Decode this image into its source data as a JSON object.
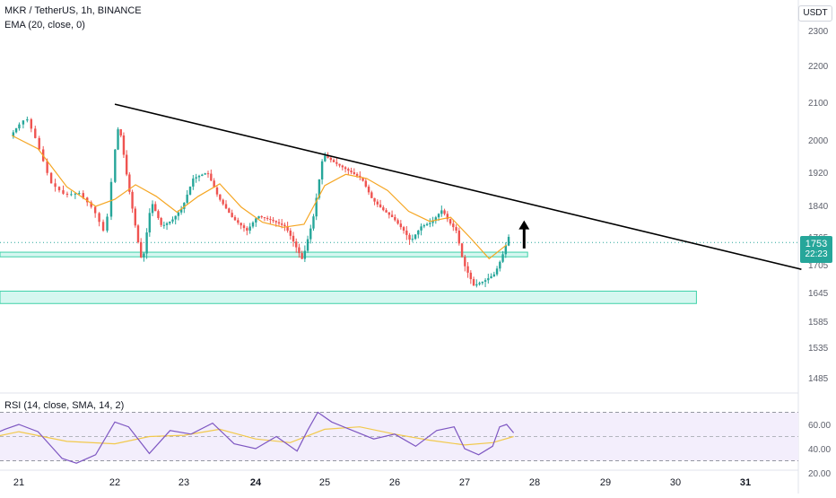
{
  "header": {
    "symbol_line": "MKR / TetherUS, 1h, BINANCE",
    "ema_legend": "EMA (20, close, 0)",
    "currency_badge": "USDT"
  },
  "price_badge": {
    "price": "1753",
    "countdown": "22:23"
  },
  "rsi_legend": "RSI (14, close, SMA, 14, 2)",
  "colors": {
    "up": "#26a69a",
    "down": "#ef5350",
    "ema": "#f5a623",
    "trendline": "#000000",
    "zone_fill": "#b2f0e3",
    "zone_border": "#3ed1a8",
    "rsi_line": "#7e57c2",
    "rsi_ma": "#f2c94c",
    "rsi_band": "#f3eefc",
    "price_badge": "#26a69a"
  },
  "chart_data": [
    {
      "type": "candlestick",
      "title": "MKR / TetherUS, 1h, BINANCE",
      "y_ticks": [
        "2300",
        "2200",
        "2100",
        "2000",
        "1920",
        "1840",
        "1765",
        "1705",
        "1645",
        "1585",
        "1535",
        "1485"
      ],
      "x_ticks": [
        "21",
        "22",
        "23",
        "24",
        "25",
        "26",
        "27",
        "28",
        "29",
        "30",
        "31"
      ],
      "x_bold_ticks": [
        "24",
        "31"
      ],
      "ylim": [
        1450,
        2330
      ],
      "series": [
        {
          "name": "EMA (20, close, 0)",
          "type": "line",
          "x": [
            20.9,
            21.2,
            21.5,
            21.8,
            22.0,
            22.3,
            22.6,
            22.9,
            23.2,
            23.5,
            23.8,
            24.1,
            24.4,
            24.7,
            25.0,
            25.3,
            25.6,
            25.9,
            26.2,
            26.5,
            26.8,
            27.1,
            27.35,
            27.6
          ],
          "values": [
            2012,
            1978,
            1885,
            1838,
            1855,
            1890,
            1862,
            1824,
            1862,
            1892,
            1836,
            1800,
            1788,
            1795,
            1888,
            1915,
            1905,
            1876,
            1826,
            1802,
            1812,
            1760,
            1718,
            1748
          ]
        },
        {
          "name": "Price",
          "type": "line",
          "x": [
            20.9,
            21.0,
            21.1,
            21.2,
            21.35,
            21.5,
            21.65,
            21.8,
            21.92,
            22.02,
            22.08,
            22.2,
            22.35,
            22.42,
            22.55,
            22.7,
            22.85,
            23.0,
            23.15,
            23.35,
            23.5,
            23.7,
            23.9,
            24.05,
            24.25,
            24.45,
            24.6,
            24.7,
            24.85,
            25.0,
            25.15,
            25.35,
            25.55,
            25.7,
            25.85,
            26.0,
            26.15,
            26.25,
            26.4,
            26.55,
            26.7,
            26.8,
            26.9,
            27.0,
            27.15,
            27.3,
            27.45,
            27.55,
            27.65
          ],
          "values": [
            2010,
            2035,
            2060,
            2000,
            1895,
            1865,
            1870,
            1830,
            1770,
            1970,
            2045,
            1905,
            1760,
            1705,
            1850,
            1790,
            1805,
            1835,
            1905,
            1920,
            1860,
            1810,
            1780,
            1815,
            1805,
            1790,
            1745,
            1715,
            1805,
            1965,
            1945,
            1925,
            1905,
            1855,
            1830,
            1810,
            1780,
            1755,
            1790,
            1800,
            1830,
            1800,
            1780,
            1710,
            1660,
            1670,
            1685,
            1720,
            1765
          ]
        }
      ],
      "trendline": {
        "from": {
          "x": 22.0,
          "y": 2095
        },
        "to": {
          "x": 31.8,
          "y": 1695
        }
      },
      "zones": [
        {
          "x_range": [
            20.5,
            27.9
          ],
          "y_range": [
            1722,
            1732
          ]
        },
        {
          "x_range": [
            20.0,
            30.3
          ],
          "y_range": [
            1622,
            1648
          ]
        }
      ],
      "annotations": [
        {
          "type": "up-arrow",
          "x": 27.85,
          "y_range": [
            1740,
            1800
          ]
        }
      ]
    },
    {
      "type": "line",
      "title": "RSI (14, close, SMA, 14, 2)",
      "y_ticks": [
        "60.00",
        "40.00",
        "20.00"
      ],
      "ylim": [
        15,
        75
      ],
      "bands": [
        30,
        70
      ],
      "series": [
        {
          "name": "RSI",
          "x": [
            20.0,
            20.4,
            20.8,
            21.0,
            21.2,
            21.45,
            21.6,
            21.8,
            22.0,
            22.2,
            22.5,
            22.8,
            23.1,
            23.4,
            23.7,
            24.0,
            24.3,
            24.6,
            24.75,
            24.9,
            25.1,
            25.4,
            25.7,
            26.0,
            26.3,
            26.6,
            26.85,
            27.0,
            27.2,
            27.4,
            27.5,
            27.6,
            27.7
          ],
          "values": [
            47,
            46,
            56,
            60,
            54,
            32,
            28,
            35,
            62,
            58,
            36,
            55,
            52,
            61,
            44,
            40,
            50,
            38,
            55,
            70,
            62,
            55,
            48,
            52,
            42,
            55,
            58,
            40,
            35,
            42,
            58,
            60,
            53
          ]
        },
        {
          "name": "RSI-based MA",
          "x": [
            20.0,
            20.5,
            21.0,
            21.5,
            22.0,
            22.5,
            23.0,
            23.5,
            24.0,
            24.5,
            25.0,
            25.5,
            26.0,
            26.5,
            27.0,
            27.4,
            27.7
          ],
          "values": [
            44,
            48,
            54,
            46,
            44,
            50,
            51,
            56,
            48,
            45,
            56,
            58,
            52,
            47,
            43,
            45,
            50
          ]
        }
      ]
    }
  ]
}
